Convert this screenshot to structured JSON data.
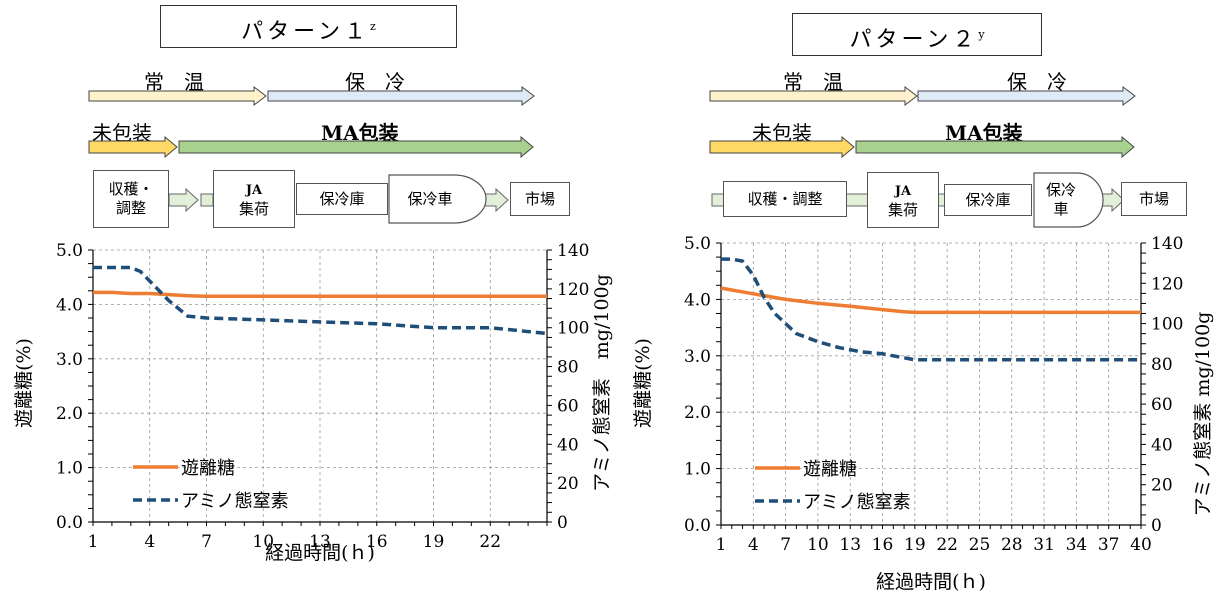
{
  "panels": [
    {
      "title": "パターン１",
      "title_sup": "z",
      "stage1": {
        "room": "常　温",
        "cold": "保　冷"
      },
      "stage2": {
        "unpacked": "未包装",
        "ma": "MA包装"
      },
      "flow": {
        "harvest_line1": "収穫・",
        "harvest_line2": "調整",
        "ja_line1": "JA",
        "ja_line2": "集荷",
        "cold_storage": "保冷庫",
        "reefer": "保冷車",
        "reefer_line2": "",
        "market": "市場"
      }
    },
    {
      "title": "パターン２",
      "title_sup": "y",
      "stage1": {
        "room": "常　温",
        "cold": "保　冷"
      },
      "stage2": {
        "unpacked": "未包装",
        "ma": "MA包装"
      },
      "flow": {
        "harvest_line1": "収穫・調整",
        "harvest_line2": "",
        "ja_line1": "JA",
        "ja_line2": "集荷",
        "cold_storage": "保冷庫",
        "reefer": "保冷",
        "reefer_line2": "車",
        "market": "市場"
      }
    }
  ],
  "colors": {
    "sugar": "#ED7D31",
    "amino": "#1F4E79",
    "room_arrow": "#FFF2CC",
    "cold_arrow": "#DEEBF7",
    "unpacked_arrow": "#FFD966",
    "ma_arrow": "#A9D18E",
    "flow_arrow": "#E2F0D9"
  },
  "chart_data": [
    {
      "type": "line",
      "xlabel": "経過時間(ｈ)",
      "ylabel": "遊離糖(%)",
      "y2label": "アミノ態窒素　mg/100g",
      "xlim": [
        1,
        25
      ],
      "xticks": [
        1,
        4,
        7,
        10,
        13,
        16,
        19,
        22
      ],
      "ylim": [
        0,
        5
      ],
      "yticks": [
        "0.0",
        "1.0",
        "2.0",
        "3.0",
        "4.0",
        "5.0"
      ],
      "y2lim": [
        0,
        140
      ],
      "y2ticks": [
        "0",
        "20",
        "40",
        "60",
        "80",
        "100",
        "120",
        "140"
      ],
      "grid": true,
      "legend_position": "bottom-left",
      "series": [
        {
          "name": "遊離糖",
          "axis": "left",
          "style": "solid",
          "x": [
            1,
            2,
            3,
            4,
            5,
            6,
            7,
            10,
            13,
            16,
            19,
            22,
            25
          ],
          "y": [
            4.22,
            4.22,
            4.2,
            4.2,
            4.18,
            4.16,
            4.15,
            4.15,
            4.15,
            4.15,
            4.15,
            4.15,
            4.15
          ]
        },
        {
          "name": "アミノ態窒素",
          "axis": "right",
          "style": "dashed",
          "x": [
            1,
            2,
            3,
            3.5,
            4,
            5,
            6,
            7,
            10,
            13,
            16,
            19,
            22,
            25
          ],
          "y": [
            131,
            131,
            131,
            129,
            124,
            114,
            106,
            105,
            104,
            103,
            102,
            100,
            100,
            97
          ]
        }
      ]
    },
    {
      "type": "line",
      "xlabel": "経過時間(ｈ)",
      "ylabel": "遊離糖(%)",
      "y2label": "アミノ態窒素 mg/100g",
      "xlim": [
        1,
        40
      ],
      "xticks": [
        1,
        4,
        7,
        10,
        13,
        16,
        19,
        22,
        25,
        28,
        31,
        34,
        37,
        40
      ],
      "ylim": [
        0,
        5
      ],
      "yticks": [
        "0.0",
        "1.0",
        "2.0",
        "3.0",
        "4.0",
        "5.0"
      ],
      "y2lim": [
        0,
        140
      ],
      "y2ticks": [
        "0",
        "20",
        "40",
        "60",
        "80",
        "100",
        "120",
        "140"
      ],
      "grid": true,
      "legend_position": "bottom-left",
      "series": [
        {
          "name": "遊離糖",
          "axis": "left",
          "style": "solid",
          "x": [
            1,
            4,
            7,
            10,
            13,
            16,
            18,
            19,
            22,
            25,
            28,
            31,
            34,
            37,
            40
          ],
          "y": [
            4.2,
            4.1,
            4.0,
            3.93,
            3.88,
            3.82,
            3.78,
            3.77,
            3.77,
            3.77,
            3.77,
            3.77,
            3.77,
            3.77,
            3.77
          ]
        },
        {
          "name": "アミノ態窒素",
          "axis": "right",
          "style": "dashed",
          "x": [
            1,
            2,
            3,
            4,
            5,
            6,
            7,
            8,
            10,
            12,
            14,
            16,
            18,
            19,
            22,
            25,
            28,
            31,
            34,
            37,
            40
          ],
          "y": [
            132,
            132,
            131,
            124,
            113,
            105,
            100,
            95,
            91,
            88,
            86,
            85,
            83,
            82,
            82,
            82,
            82,
            82,
            82,
            82,
            82
          ]
        }
      ]
    }
  ]
}
